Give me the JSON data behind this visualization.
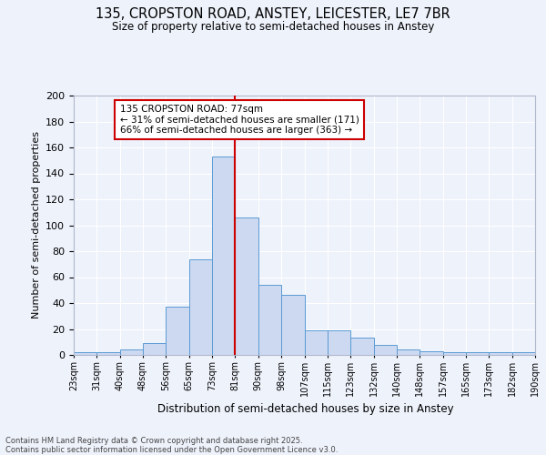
{
  "title1": "135, CROPSTON ROAD, ANSTEY, LEICESTER, LE7 7BR",
  "title2": "Size of property relative to semi-detached houses in Anstey",
  "xlabel": "Distribution of semi-detached houses by size in Anstey",
  "ylabel": "Number of semi-detached properties",
  "categories": [
    "23sqm",
    "31sqm",
    "40sqm",
    "48sqm",
    "56sqm",
    "65sqm",
    "73sqm",
    "81sqm",
    "90sqm",
    "98sqm",
    "107sqm",
    "115sqm",
    "123sqm",
    "132sqm",
    "140sqm",
    "148sqm",
    "157sqm",
    "165sqm",
    "173sqm",
    "182sqm",
    "190sqm"
  ],
  "values": [
    2,
    2,
    4,
    9,
    37,
    74,
    153,
    106,
    54,
    46,
    19,
    19,
    13,
    8,
    4,
    3,
    2,
    2,
    2,
    2
  ],
  "bar_color": "#ccd9f0",
  "bar_edge_color": "#5b9bd5",
  "pct_smaller": 31,
  "num_smaller": 171,
  "pct_larger": 66,
  "num_larger": 363,
  "vline_color": "#cc0000",
  "ylim": [
    0,
    200
  ],
  "yticks": [
    0,
    20,
    40,
    60,
    80,
    100,
    120,
    140,
    160,
    180,
    200
  ],
  "annotation_box_color": "#cc0000",
  "footer1": "Contains HM Land Registry data © Crown copyright and database right 2025.",
  "footer2": "Contains public sector information licensed under the Open Government Licence v3.0.",
  "bg_color": "#eef2fb",
  "plot_bg_color": "#eef2fb"
}
